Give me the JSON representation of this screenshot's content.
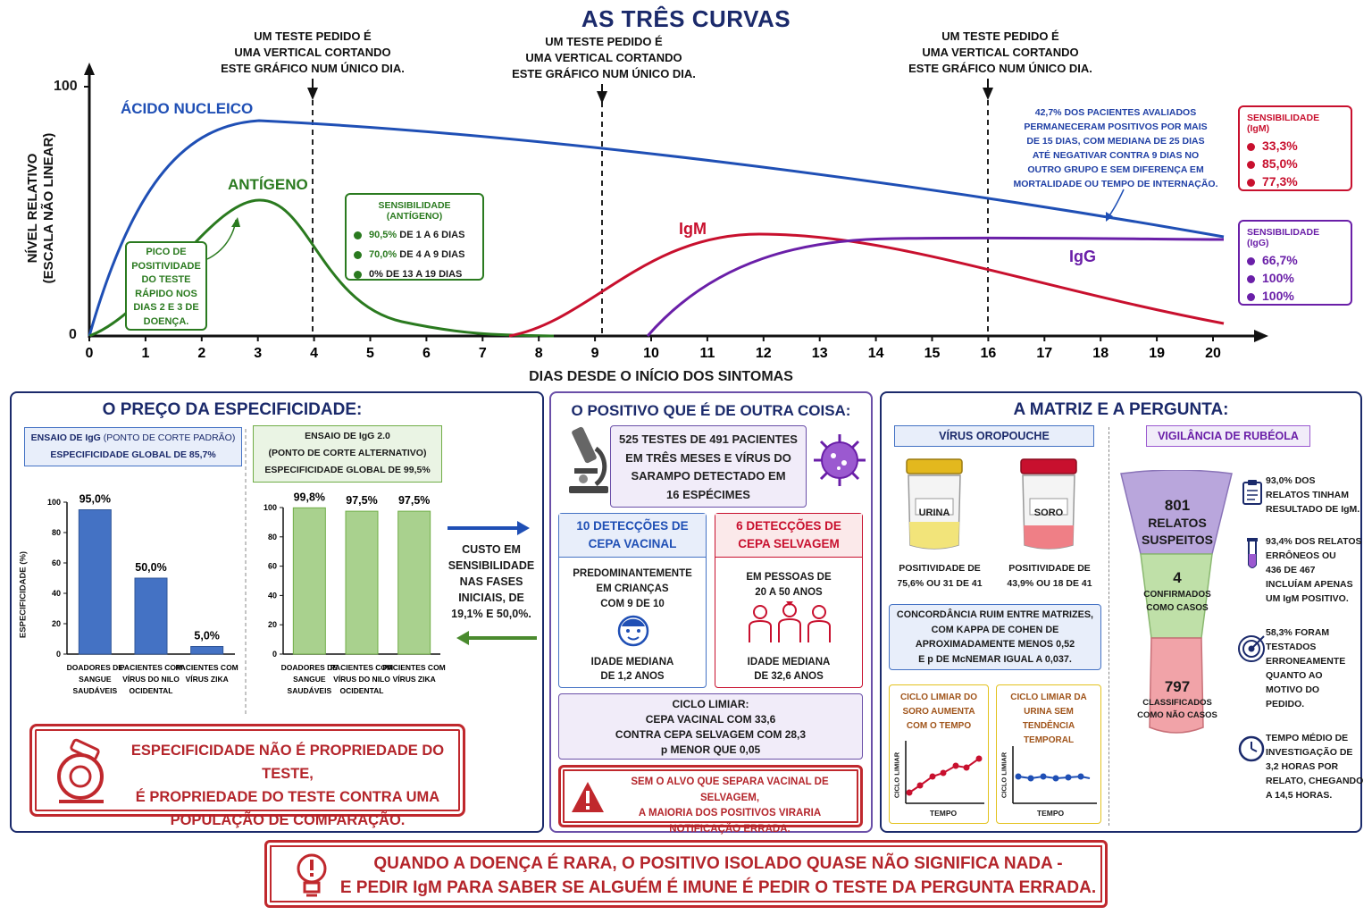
{
  "title": "AS TRÊS CURVAS",
  "chart": {
    "ylabel_line1": "NÍVEL RELATIVO",
    "ylabel_line2": "(ESCALA NÃO LINEAR)",
    "xlabel": "DIAS DESDE O INÍCIO DOS SINTOMAS",
    "y_ticks": [
      "0",
      "100"
    ],
    "x_ticks": [
      "0",
      "1",
      "2",
      "3",
      "4",
      "5",
      "6",
      "7",
      "8",
      "9",
      "10",
      "11",
      "12",
      "13",
      "14",
      "15",
      "16",
      "17",
      "18",
      "19",
      "20"
    ],
    "test_note": [
      "UM TESTE PEDIDO É",
      "UMA VERTICAL CORTANDO",
      "ESTE GRÁFICO NUM ÚNICO DIA."
    ],
    "series_labels": {
      "nucleic": "ÁCIDO NUCLEICO",
      "antigen": "ANTÍGENO",
      "igm": "IgM",
      "igg": "IgG"
    },
    "colors": {
      "nucleic": "#1f4fb5",
      "antigen": "#2a7a1f",
      "igm": "#c8102e",
      "igg": "#6a1fa8"
    },
    "peak_note": [
      "PICO DE",
      "POSITIVIDADE",
      "DO TESTE",
      "RÁPIDO NOS",
      "DIAS 2 E 3 DE",
      "DOENÇA."
    ],
    "antigen_sens": {
      "title": "SENSIBILIDADE (ANTÍGENO)",
      "items": [
        {
          "value": "90,5%",
          "text": "DE 1 A 6 DIAS"
        },
        {
          "value": "70,0%",
          "text": "DE 4 A 9 DIAS"
        },
        {
          "value": "0%",
          "text": "DE 13 A 19 DIAS"
        }
      ]
    },
    "persist_note": [
      "42,7% DOS PACIENTES AVALIADOS",
      "PERMANECERAM POSITIVOS POR MAIS",
      "DE 15 DIAS, COM MEDIANA DE 25 DIAS",
      "ATÉ NEGATIVAR CONTRA 9 DIAS NO",
      "OUTRO GRUPO E SEM DIFERENÇA EM",
      "MORTALIDADE OU TEMPO DE INTERNAÇÃO."
    ],
    "igm_sens": {
      "title": "SENSIBILIDADE (IgM)",
      "values": [
        "33,3%",
        "85,0%",
        "77,3%"
      ]
    },
    "igg_sens": {
      "title": "SENSIBILIDADE (IgG)",
      "values": [
        "66,7%",
        "100%",
        "100%"
      ]
    }
  },
  "panel1": {
    "title": "O PREÇO DA ESPECIFICIDADE:",
    "left_header": {
      "line1a": "ENSAIO DE IgG",
      "line1b": "(PONTO DE CORTE PADRÃO)",
      "line2": "ESPECIFICIDADE GLOBAL DE 85,7%"
    },
    "right_header": {
      "line1": "ENSAIO DE IgG 2.0",
      "line2": "(PONTO DE CORTE ALTERNATIVO)",
      "line3": "ESPECIFICIDADE GLOBAL DE 99,5%"
    },
    "ylabel": "ESPECIFICIDADE (%)",
    "y_ticks": [
      "0",
      "20",
      "40",
      "60",
      "80",
      "100"
    ],
    "categories": [
      [
        "DOADORES DE",
        "SANGUE",
        "SAUDÁVEIS"
      ],
      [
        "PACIENTES COM",
        "VÍRUS DO NILO",
        "OCIDENTAL"
      ],
      [
        "PACIENTES COM",
        "VÍRUS ZIKA"
      ]
    ],
    "cost_note": [
      "CUSTO EM",
      "SENSIBILIDADE",
      "NAS FASES",
      "INICIAIS, DE",
      "19,1% E 50,0%."
    ],
    "bottom_note": [
      "ESPECIFICIDADE NÃO É PROPRIEDADE DO TESTE,",
      "É PROPRIEDADE DO TESTE CONTRA UMA",
      "POPULAÇÃO DE COMPARAÇÃO."
    ]
  },
  "chart_data": [
    {
      "type": "bar",
      "title": "ENSAIO DE IgG (PONTO DE CORTE PADRÃO)",
      "categories": [
        "DOADORES DE SANGUE SAUDÁVEIS",
        "PACIENTES COM VÍRUS DO NILO OCIDENTAL",
        "PACIENTES COM VÍRUS ZIKA"
      ],
      "values": [
        95.0,
        50.0,
        5.0
      ],
      "value_labels": [
        "95,0%",
        "50,0%",
        "5,0%"
      ],
      "ylabel": "ESPECIFICIDADE (%)",
      "ylim": [
        0,
        100
      ],
      "color": "#4472c4"
    },
    {
      "type": "bar",
      "title": "ENSAIO DE IgG 2.0 (PONTO DE CORTE ALTERNATIVO)",
      "categories": [
        "DOADORES DE SANGUE SAUDÁVEIS",
        "PACIENTES COM VÍRUS DO NILO OCIDENTAL",
        "PACIENTES COM VÍRUS ZIKA"
      ],
      "values": [
        99.8,
        97.5,
        97.5
      ],
      "value_labels": [
        "99,8%",
        "97,5%",
        "97,5%"
      ],
      "ylim": [
        0,
        100
      ],
      "color": "#a9d18e"
    }
  ],
  "panel2": {
    "title": "O POSITIVO QUE É DE OUTRA COISA:",
    "summary": [
      "525 TESTES DE 491 PACIENTES",
      "EM TRÊS MESES E VÍRUS DO",
      "SARAMPO DETECTADO EM",
      "16 ESPÉCIMES"
    ],
    "vaccine": {
      "title": [
        "10 DETECÇÕES DE",
        "CEPA VACINAL"
      ],
      "body": [
        "PREDOMINANTEMENTE",
        "EM CRIANÇAS",
        "COM 9 DE 10"
      ],
      "age": [
        "IDADE MEDIANA",
        "DE 1,2 ANOS"
      ]
    },
    "wild": {
      "title": [
        "6 DETECÇÕES DE",
        "CEPA SELVAGEM"
      ],
      "body": [
        "EM PESSOAS DE",
        "20 A 50 ANOS"
      ],
      "age": [
        "IDADE MEDIANA",
        "DE 32,6 ANOS"
      ]
    },
    "ct": [
      "CICLO LIMIAR:",
      "CEPA VACINAL COM 33,6",
      "CONTRA CEPA SELVAGEM COM 28,3",
      "p MENOR QUE 0,05"
    ],
    "warning": [
      "SEM O ALVO QUE SEPARA VACINAL DE SELVAGEM,",
      "A MAIORIA DOS POSITIVOS VIRARIA",
      "NOTIFICAÇÃO ERRADA."
    ]
  },
  "panel3": {
    "title": "A MATRIZ E A PERGUNTA:",
    "oropouche": {
      "title": "VÍRUS OROPOUCHE",
      "urine_label": "URINA",
      "serum_label": "SORO",
      "urine_pos": [
        "POSITIVIDADE DE",
        "75,6% OU 31 DE 41"
      ],
      "serum_pos": [
        "POSITIVIDADE DE",
        "43,9% OU 18 DE 41"
      ],
      "agreement": [
        "CONCORDÂNCIA RUIM ENTRE MATRIZES,",
        "COM KAPPA DE COHEN DE",
        "APROXIMADAMENTE MENOS 0,52",
        "E p DE McNEMAR IGUAL A 0,037."
      ],
      "serum_ct": [
        "CICLO LIMIAR DO",
        "SORO AUMENTA",
        "COM O TEMPO"
      ],
      "urine_ct": [
        "CICLO LIMIAR DA",
        "URINA SEM",
        "TENDÊNCIA",
        "TEMPORAL"
      ],
      "mini_ylabel": "CICLO LIMIAR",
      "mini_xlabel": "TEMPO"
    },
    "rubella": {
      "title": "VIGILÂNCIA DE RUBÉOLA",
      "funnel_top": {
        "number": "801",
        "label": [
          "RELATOS",
          "SUSPEITOS"
        ]
      },
      "funnel_mid": {
        "number": "4",
        "label": [
          "CONFIRMADOS",
          "COMO CASOS"
        ]
      },
      "funnel_bot": {
        "number": "797",
        "label": [
          "CLASSIFICADOS",
          "COMO NÃO CASOS"
        ]
      },
      "facts": [
        {
          "icon": "clipboard-icon",
          "lines": [
            "93,0% DOS",
            "RELATOS TINHAM",
            "RESULTADO DE IgM."
          ]
        },
        {
          "icon": "test-tube-icon",
          "lines": [
            "93,4% DOS RELATOS",
            "ERRÔNEOS OU",
            "436 DE 467",
            "INCLUÍAM APENAS",
            "UM IgM POSITIVO."
          ]
        },
        {
          "icon": "target-icon",
          "lines": [
            "58,3% FORAM",
            "TESTADOS",
            "ERRONEAMENTE",
            "QUANTO AO",
            "MOTIVO DO",
            "PEDIDO."
          ]
        },
        {
          "icon": "clock-icon",
          "lines": [
            "TEMPO MÉDIO DE",
            "INVESTIGAÇÃO DE",
            "3,2 HORAS POR",
            "RELATO, CHEGANDO",
            "A 14,5 HORAS."
          ]
        }
      ]
    }
  },
  "footer": [
    "QUANDO A DOENÇA É RARA, O POSITIVO ISOLADO QUASE NÃO SIGNIFICA NADA -",
    "E PEDIR IgM PARA SABER SE ALGUÉM É IMUNE É PEDIR O TESTE DA PERGUNTA ERRADA."
  ]
}
